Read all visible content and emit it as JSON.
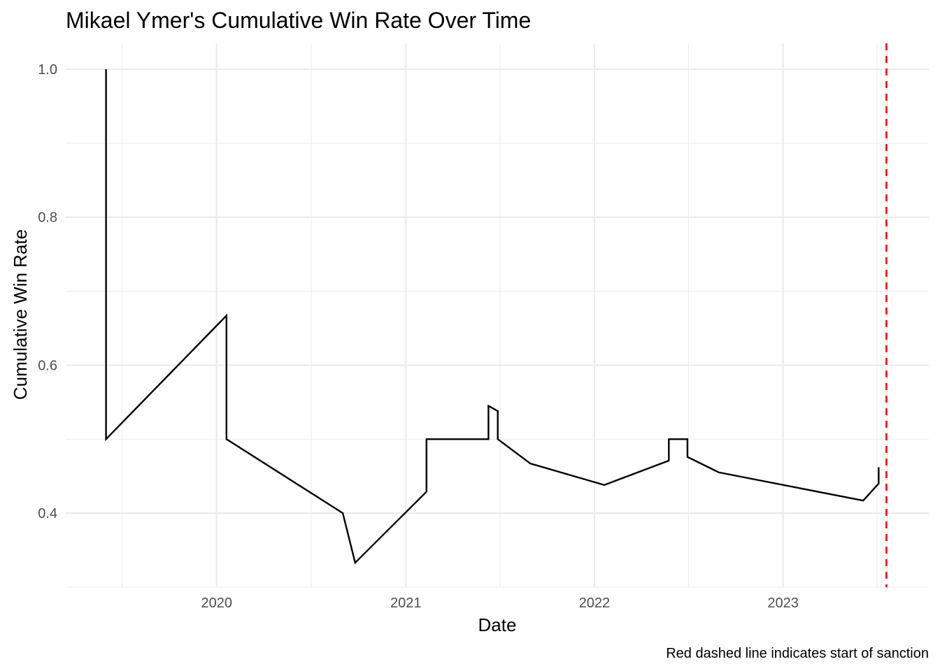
{
  "chart_data": {
    "type": "line",
    "title": "Mikael Ymer's Cumulative Win Rate Over Time",
    "xlabel": "Date",
    "ylabel": "Cumulative Win Rate",
    "caption": "Red dashed line indicates start of sanction",
    "x_ticks": [
      "2020-01-01",
      "2021-01-01",
      "2022-01-01",
      "2023-01-01"
    ],
    "x_tick_labels": [
      "2020",
      "2021",
      "2022",
      "2023"
    ],
    "y_ticks": [
      0.4,
      0.6,
      0.8,
      1.0
    ],
    "y_tick_labels": [
      "0.4",
      "0.6",
      "0.8",
      "1.0"
    ],
    "xlim": [
      "2019-03-15",
      "2023-10-10"
    ],
    "ylim": [
      0.3,
      1.035
    ],
    "grid": true,
    "series": [
      {
        "color": "#000000",
        "x": [
          "2019-06-01",
          "2019-06-01",
          "2020-01-20",
          "2020-01-20",
          "2020-09-01",
          "2020-09-25",
          "2021-02-10",
          "2021-02-10",
          "2021-06-10",
          "2021-06-10",
          "2021-06-28",
          "2021-06-28",
          "2021-08-30",
          "2022-01-20",
          "2022-05-25",
          "2022-05-25",
          "2022-06-30",
          "2022-06-30",
          "2022-08-30",
          "2023-06-05",
          "2023-07-05",
          "2023-07-05"
        ],
        "y": [
          1.0,
          0.5,
          0.667,
          0.5,
          0.4,
          0.333,
          0.429,
          0.5,
          0.5,
          0.545,
          0.538,
          0.5,
          0.467,
          0.438,
          0.471,
          0.5,
          0.5,
          0.476,
          0.455,
          0.417,
          0.44,
          0.462
        ]
      }
    ],
    "annotation": {
      "type": "vline",
      "x": "2023-07-20",
      "color": "#ff0000",
      "style": "dashed"
    }
  }
}
